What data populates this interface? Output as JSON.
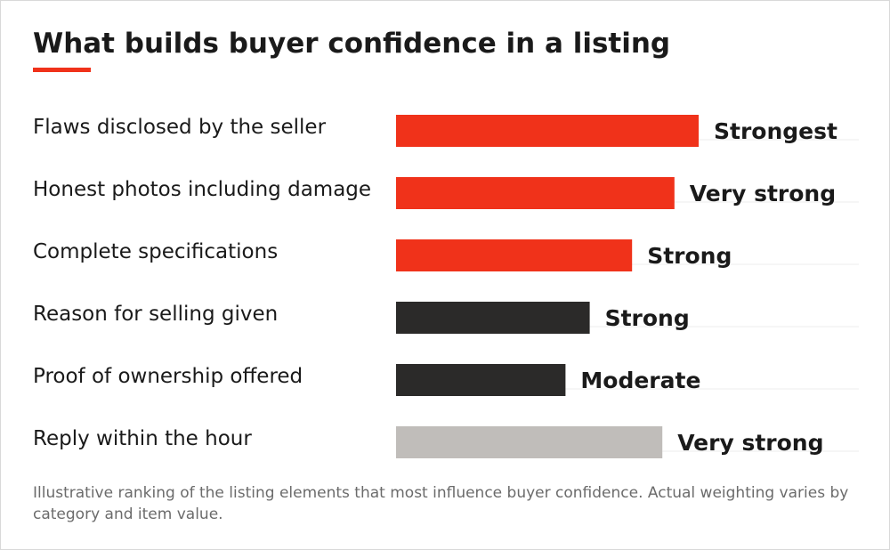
{
  "title": "What builds buyer confidence in a listing",
  "footnote": "Illustrative ranking of the listing elements that most influence buyer confidence. Actual weighting varies by category and item value.",
  "colors": {
    "accent": "#f0321a",
    "dark": "#2b2a29",
    "muted": "#c0bdba",
    "gridline": "#eeeeee",
    "text": "#1a1a1a"
  },
  "chart_data": {
    "type": "bar",
    "orientation": "horizontal",
    "grid": false,
    "legend": "none",
    "xlim": [
      0,
      100
    ],
    "bars": [
      {
        "category": "Flaws disclosed by the seller",
        "value": 100,
        "label": "Strongest",
        "color": "#f0321a"
      },
      {
        "category": "Honest photos including damage",
        "value": 92,
        "label": "Very strong",
        "color": "#f0321a"
      },
      {
        "category": "Complete specifications",
        "value": 78,
        "label": "Strong",
        "color": "#f0321a"
      },
      {
        "category": "Reason for selling given",
        "value": 64,
        "label": "Strong",
        "color": "#2b2a29"
      },
      {
        "category": "Proof of ownership offered",
        "value": 56,
        "label": "Moderate",
        "color": "#2b2a29"
      },
      {
        "category": "Reply within the hour",
        "value": 88,
        "label": "Very strong",
        "color": "#c0bdba"
      }
    ]
  }
}
